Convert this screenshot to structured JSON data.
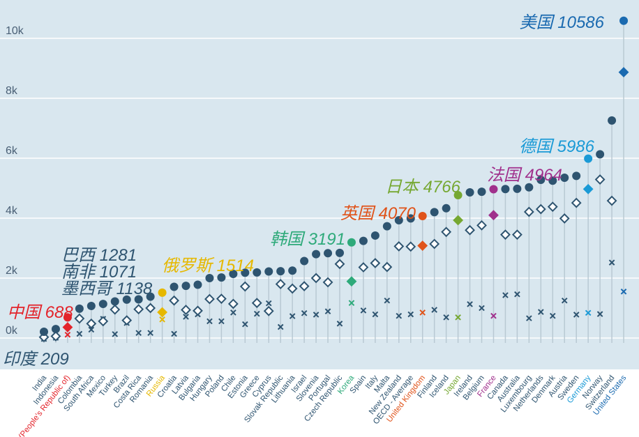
{
  "chart_data": {
    "type": "dot",
    "title": "",
    "xlabel": "",
    "ylabel": "",
    "ylim": [
      -500,
      10800
    ],
    "yticks": [
      {
        "value": 0,
        "label": "0k"
      },
      {
        "value": 2000,
        "label": "2k"
      },
      {
        "value": 4000,
        "label": "4k"
      },
      {
        "value": 6000,
        "label": "6k"
      },
      {
        "value": 8000,
        "label": "8k"
      },
      {
        "value": 10000,
        "label": "10k"
      }
    ],
    "colors": {
      "default": "#2e5470",
      "China": "#e3242b",
      "Russia": "#e6b800",
      "Korea": "#2eaa7a",
      "United Kingdom": "#e0531a",
      "Japan": "#76a832",
      "France": "#a0308c",
      "Germany": "#1a9ad6",
      "United States": "#1a6ab0",
      "background": "#d9e7ef"
    },
    "series": [
      {
        "name": "Circle",
        "marker": "circle"
      },
      {
        "name": "Diamond",
        "marker": "diamond"
      },
      {
        "name": "Cross",
        "marker": "x"
      }
    ],
    "categories": [
      {
        "label": "India",
        "key": "India",
        "circle": 209,
        "diamond": 30,
        "cross": -30
      },
      {
        "label": "Indonesia",
        "key": "Indonesia",
        "circle": 300,
        "diamond": 60,
        "cross": 10
      },
      {
        "label": "China (People's Republic of)",
        "key": "China",
        "circle": 688,
        "diamond": 360,
        "cross": 110
      },
      {
        "label": "Colombia",
        "key": "Colombia",
        "circle": 980,
        "diamond": 650,
        "cross": 140
      },
      {
        "label": "South Africa",
        "key": "South Africa",
        "circle": 1071,
        "diamond": 480,
        "cross": 280
      },
      {
        "label": "Mexico",
        "key": "Mexico",
        "circle": 1138,
        "diamond": 560,
        "cross": 640
      },
      {
        "label": "Turkey",
        "key": "Turkey",
        "circle": 1220,
        "diamond": 950,
        "cross": 130
      },
      {
        "label": "Brazil",
        "key": "Brazil",
        "circle": 1281,
        "diamond": 590,
        "cross": 500
      },
      {
        "label": "Costa Rica",
        "key": "Costa Rica",
        "circle": 1290,
        "diamond": 960,
        "cross": 170
      },
      {
        "label": "Romania",
        "key": "Romania",
        "circle": 1380,
        "diamond": 1000,
        "cross": 170
      },
      {
        "label": "Russia",
        "key": "Russia",
        "circle": 1514,
        "diamond": 860,
        "cross": 620
      },
      {
        "label": "Croatia",
        "key": "Croatia",
        "circle": 1710,
        "diamond": 1250,
        "cross": 140
      },
      {
        "label": "Latvia",
        "key": "Latvia",
        "circle": 1740,
        "diamond": 940,
        "cross": 710
      },
      {
        "label": "Bulgaria",
        "key": "Bulgaria",
        "circle": 1780,
        "diamond": 910,
        "cross": 790
      },
      {
        "label": "Hungary",
        "key": "Hungary",
        "circle": 2000,
        "diamond": 1300,
        "cross": 560
      },
      {
        "label": "Poland",
        "key": "Poland",
        "circle": 2020,
        "diamond": 1310,
        "cross": 560
      },
      {
        "label": "Chile",
        "key": "Chile",
        "circle": 2140,
        "diamond": 1140,
        "cross": 850
      },
      {
        "label": "Estonia",
        "key": "Estonia",
        "circle": 2180,
        "diamond": 1720,
        "cross": 460
      },
      {
        "label": "Greece",
        "key": "Greece",
        "circle": 2190,
        "diamond": 1170,
        "cross": 810
      },
      {
        "label": "Cyprus",
        "key": "Cyprus",
        "circle": 2220,
        "diamond": 900,
        "cross": 1160
      },
      {
        "label": "Slovak Republic",
        "key": "Slovak Republic",
        "circle": 2230,
        "diamond": 1800,
        "cross": 370
      },
      {
        "label": "Lithuania",
        "key": "Lithuania",
        "circle": 2250,
        "diamond": 1650,
        "cross": 730
      },
      {
        "label": "Israel",
        "key": "Israel",
        "circle": 2570,
        "diamond": 1730,
        "cross": 830
      },
      {
        "label": "Slovenia",
        "key": "Slovenia",
        "circle": 2800,
        "diamond": 2000,
        "cross": 780
      },
      {
        "label": "Portugal",
        "key": "Portugal",
        "circle": 2830,
        "diamond": 1860,
        "cross": 890
      },
      {
        "label": "Czech Republic",
        "key": "Czech Republic",
        "circle": 2840,
        "diamond": 2470,
        "cross": 480
      },
      {
        "label": "Korea",
        "key": "Korea",
        "circle": 3191,
        "diamond": 1890,
        "cross": 1170
      },
      {
        "label": "Spain",
        "key": "Spain",
        "circle": 3240,
        "diamond": 2360,
        "cross": 920
      },
      {
        "label": "Italy",
        "key": "Italy",
        "circle": 3420,
        "diamond": 2500,
        "cross": 790
      },
      {
        "label": "Malta",
        "key": "Malta",
        "circle": 3730,
        "diamond": 2370,
        "cross": 1250
      },
      {
        "label": "New Zealand",
        "key": "New Zealand",
        "circle": 3930,
        "diamond": 3060,
        "cross": 740
      },
      {
        "label": "OECD - Average",
        "key": "OECD - Average",
        "circle": 3990,
        "diamond": 3050,
        "cross": 790
      },
      {
        "label": "United Kingdom",
        "key": "United Kingdom",
        "circle": 4070,
        "diamond": 3080,
        "cross": 850
      },
      {
        "label": "Finland",
        "key": "Finland",
        "circle": 4200,
        "diamond": 3140,
        "cross": 940
      },
      {
        "label": "Iceland",
        "key": "Iceland",
        "circle": 4330,
        "diamond": 3540,
        "cross": 690
      },
      {
        "label": "Japan",
        "key": "Japan",
        "circle": 4766,
        "diamond": 3930,
        "cross": 690
      },
      {
        "label": "Ireland",
        "key": "Ireland",
        "circle": 4860,
        "diamond": 3600,
        "cross": 1130
      },
      {
        "label": "Belgium",
        "key": "Belgium",
        "circle": 4880,
        "diamond": 3760,
        "cross": 1000
      },
      {
        "label": "France",
        "key": "France",
        "circle": 4964,
        "diamond": 4100,
        "cross": 740
      },
      {
        "label": "Canada",
        "key": "Canada",
        "circle": 4970,
        "diamond": 3450,
        "cross": 1430
      },
      {
        "label": "Australia",
        "key": "Australia",
        "circle": 4980,
        "diamond": 3450,
        "cross": 1460
      },
      {
        "label": "Luxembourg",
        "key": "Luxembourg",
        "circle": 5030,
        "diamond": 4210,
        "cross": 660
      },
      {
        "label": "Netherlands",
        "key": "Netherlands",
        "circle": 5280,
        "diamond": 4300,
        "cross": 870
      },
      {
        "label": "Denmark",
        "key": "Denmark",
        "circle": 5250,
        "diamond": 4380,
        "cross": 740
      },
      {
        "label": "Austria",
        "key": "Austria",
        "circle": 5350,
        "diamond": 3990,
        "cross": 1250
      },
      {
        "label": "Sweden",
        "key": "Sweden",
        "circle": 5410,
        "diamond": 4510,
        "cross": 780
      },
      {
        "label": "Germany",
        "key": "Germany",
        "circle": 5986,
        "diamond": 4970,
        "cross": 840
      },
      {
        "label": "Norway",
        "key": "Norway",
        "circle": 6130,
        "diamond": 5290,
        "cross": 800
      },
      {
        "label": "Switzerland",
        "key": "Switzerland",
        "circle": 7260,
        "diamond": 4580,
        "cross": 2520
      },
      {
        "label": "United States",
        "key": "United States",
        "circle": 10586,
        "diamond": 8870,
        "cross": 1550
      }
    ],
    "annotations": [
      {
        "text": "美国 10586",
        "key": "United States",
        "placement": "left-of-point"
      },
      {
        "text": "德国 5986",
        "key": "Germany",
        "placement": "left-of-point"
      },
      {
        "text": "法国 4964",
        "key": "France",
        "placement": "above-point"
      },
      {
        "text": "日本 4766",
        "key": "Japan",
        "placement": "above-point"
      },
      {
        "text": "英国 4070",
        "key": "United Kingdom",
        "placement": "above-point"
      },
      {
        "text": "韩国 3191",
        "key": "Korea",
        "placement": "above-point"
      },
      {
        "text": "俄罗斯 1514",
        "key": "Russia",
        "placement": "above-point"
      },
      {
        "text": "巴西 1281",
        "key": "Brazil",
        "placement": "stack-left"
      },
      {
        "text": "南非 1071",
        "key": "South Africa",
        "placement": "stack-left"
      },
      {
        "text": "墨西哥 1138",
        "key": "Mexico",
        "placement": "stack-left"
      },
      {
        "text": "中国 688",
        "key": "China",
        "placement": "left-of-point"
      },
      {
        "text": "印度 209",
        "key": "India",
        "placement": "below-point"
      }
    ]
  }
}
